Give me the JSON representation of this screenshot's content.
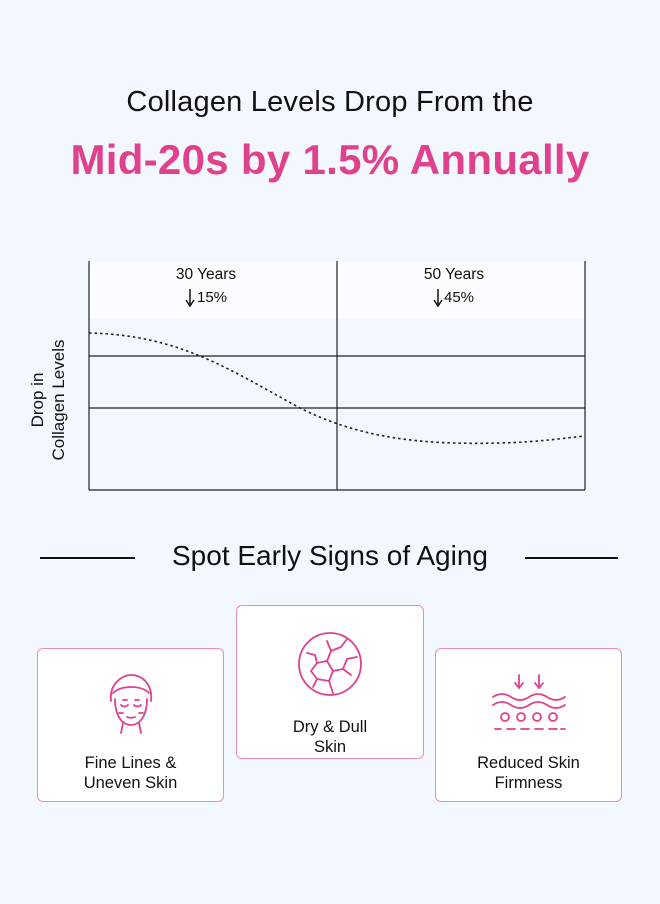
{
  "header": {
    "line1": "Collagen Levels Drop From the",
    "line2": "Mid-20s by 1.5% Annually"
  },
  "chart_data": {
    "type": "line",
    "ylabel": [
      "Drop in",
      "Collagen Levels"
    ],
    "annotations": [
      {
        "label": "30 Years",
        "drop_label": "15%",
        "arrow": "down"
      },
      {
        "label": "50 Years",
        "drop_label": "45%",
        "arrow": "down"
      }
    ],
    "line_style": "dotted",
    "grid": true
  },
  "section": {
    "title": "Spot Early Signs of Aging"
  },
  "cards": [
    {
      "icon": "face-lines-icon",
      "label_line1": "Fine Lines &",
      "label_line2": "Uneven Skin"
    },
    {
      "icon": "cracked-skin-icon",
      "label_line1": "Dry & Dull",
      "label_line2": "Skin"
    },
    {
      "icon": "skin-layers-icon",
      "label_line1": "Reduced Skin",
      "label_line2": "Firmness"
    }
  ],
  "colors": {
    "accent": "#e0418d",
    "card_border": "#e98cb8",
    "background": "#f3f8fe"
  }
}
